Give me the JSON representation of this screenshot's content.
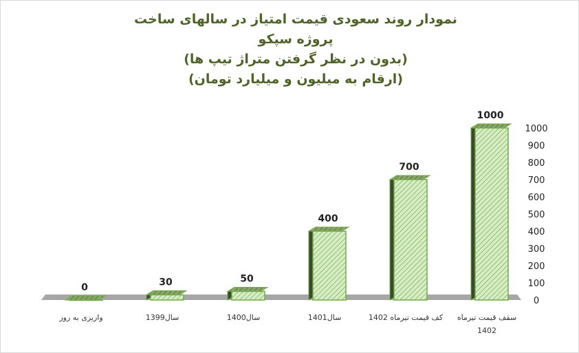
{
  "chart_data": {
    "type": "bar",
    "title_lines": [
      "نمودار روند سعودی قیمت امتیاز در سالهای ساخت",
      "پروژه سپکو",
      "(بدون در نظر گرفتن متراژ تیپ ها)",
      "(ارقام به میلیون و میلیارد تومان)"
    ],
    "categories": [
      "واریزی به روز",
      "سال1399",
      "سال1400",
      "سال1401",
      "کف قیمت تیرماه 1402",
      "سقف قیمت تیرماه 1402"
    ],
    "values": [
      0,
      30,
      50,
      400,
      700,
      1000
    ],
    "data_labels": [
      "0",
      "30",
      "50",
      "400",
      "700",
      "1000"
    ],
    "ylim": [
      0,
      1000
    ],
    "yticks": [
      "0",
      "100",
      "200",
      "300",
      "400",
      "500",
      "600",
      "700",
      "800",
      "900",
      "1000"
    ],
    "grid": false,
    "legend": "none",
    "colors": {
      "bar_front": "#c6e0b4",
      "bar_hatch": "#70ad47",
      "bar_side": "#3b4a2c",
      "bar_top": "#7f9e5a",
      "outline": "#70ad47",
      "floor": "#a6a6a6",
      "title": "#4f6228"
    }
  }
}
